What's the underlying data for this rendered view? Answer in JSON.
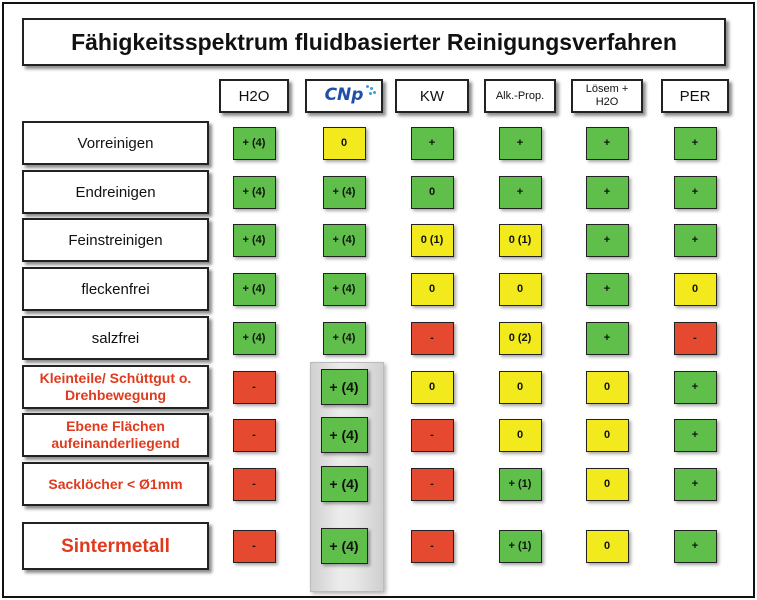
{
  "title": "Fähigkeitsspektrum fluidbasierter Reinigungsverfahren",
  "colors": {
    "green": "#5fbf4a",
    "yellow": "#f2ea1d",
    "red": "#e54a30",
    "label_red": "#e03a1e"
  },
  "columns": [
    {
      "label": "H2O",
      "logo": false
    },
    {
      "label": "CNp",
      "logo": true,
      "logo_icon": "cnp-logo-icon"
    },
    {
      "label": "KW",
      "logo": false
    },
    {
      "label": "Alk.-Prop.",
      "logo": false
    },
    {
      "label": "Lösem + H2O",
      "logo": false
    },
    {
      "label": "PER",
      "logo": false
    }
  ],
  "rows": [
    {
      "label": "Vorreinigen",
      "style": "normal",
      "cells": [
        {
          "value": "+ (4)",
          "color": "green"
        },
        {
          "value": "0",
          "color": "yellow"
        },
        {
          "value": "+",
          "color": "green"
        },
        {
          "value": "+",
          "color": "green"
        },
        {
          "value": "+",
          "color": "green"
        },
        {
          "value": "+",
          "color": "green"
        }
      ]
    },
    {
      "label": "Endreinigen",
      "style": "normal",
      "cells": [
        {
          "value": "+ (4)",
          "color": "green"
        },
        {
          "value": "+ (4)",
          "color": "green"
        },
        {
          "value": "0",
          "color": "green"
        },
        {
          "value": "+",
          "color": "green"
        },
        {
          "value": "+",
          "color": "green"
        },
        {
          "value": "+",
          "color": "green"
        }
      ]
    },
    {
      "label": "Feinstreinigen",
      "style": "normal",
      "cells": [
        {
          "value": "+ (4)",
          "color": "green"
        },
        {
          "value": "+ (4)",
          "color": "green"
        },
        {
          "value": "0 (1)",
          "color": "yellow"
        },
        {
          "value": "0 (1)",
          "color": "yellow"
        },
        {
          "value": "+",
          "color": "green"
        },
        {
          "value": "+",
          "color": "green"
        }
      ]
    },
    {
      "label": "fleckenfrei",
      "style": "normal",
      "cells": [
        {
          "value": "+ (4)",
          "color": "green"
        },
        {
          "value": "+ (4)",
          "color": "green"
        },
        {
          "value": "0",
          "color": "yellow"
        },
        {
          "value": "0",
          "color": "yellow"
        },
        {
          "value": "+",
          "color": "green"
        },
        {
          "value": "0",
          "color": "yellow"
        }
      ]
    },
    {
      "label": "salzfrei",
      "style": "normal",
      "cells": [
        {
          "value": "+ (4)",
          "color": "green"
        },
        {
          "value": "+ (4)",
          "color": "green"
        },
        {
          "value": "-",
          "color": "red"
        },
        {
          "value": "0 (2)",
          "color": "yellow"
        },
        {
          "value": "+",
          "color": "green"
        },
        {
          "value": "-",
          "color": "red"
        }
      ]
    },
    {
      "label": "Kleinteile/ Schüttgut o. Drehbewegung",
      "style": "red",
      "cells": [
        {
          "value": "-",
          "color": "red"
        },
        {
          "value": "+ (4)",
          "color": "green"
        },
        {
          "value": "0",
          "color": "yellow"
        },
        {
          "value": "0",
          "color": "yellow"
        },
        {
          "value": "0",
          "color": "yellow"
        },
        {
          "value": "+",
          "color": "green"
        }
      ]
    },
    {
      "label": "Ebene Flächen aufeinanderliegend",
      "style": "red",
      "cells": [
        {
          "value": "-",
          "color": "red"
        },
        {
          "value": "+ (4)",
          "color": "green"
        },
        {
          "value": "-",
          "color": "red"
        },
        {
          "value": "0",
          "color": "yellow"
        },
        {
          "value": "0",
          "color": "yellow"
        },
        {
          "value": "+",
          "color": "green"
        }
      ]
    },
    {
      "label": "Sacklöcher < Ø1mm",
      "style": "red",
      "cells": [
        {
          "value": "-",
          "color": "red"
        },
        {
          "value": "+ (4)",
          "color": "green"
        },
        {
          "value": "-",
          "color": "red"
        },
        {
          "value": "+ (1)",
          "color": "green"
        },
        {
          "value": "0",
          "color": "yellow"
        },
        {
          "value": "+",
          "color": "green"
        }
      ]
    },
    {
      "label": "Sintermetall",
      "style": "red-big",
      "cells": [
        {
          "value": "-",
          "color": "red"
        },
        {
          "value": "+ (4)",
          "color": "green"
        },
        {
          "value": "-",
          "color": "red"
        },
        {
          "value": "+ (1)",
          "color": "green"
        },
        {
          "value": "0",
          "color": "yellow"
        },
        {
          "value": "+",
          "color": "green"
        }
      ]
    }
  ]
}
